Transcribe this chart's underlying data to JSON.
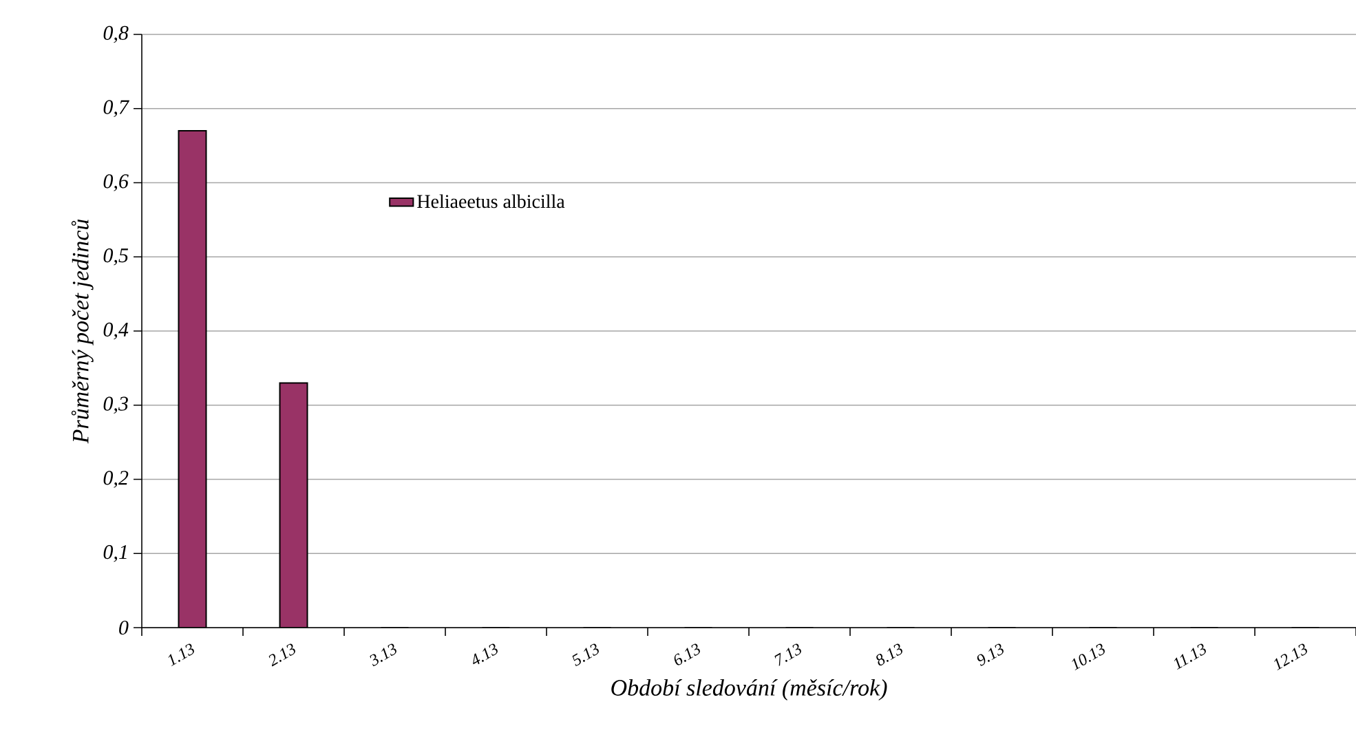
{
  "chart_data": {
    "type": "bar",
    "xlabel": "Období sledování (měsíc/rok)",
    "ylabel": "Průměrný počet jedinců",
    "categories": [
      "1.13",
      "2.13",
      "3.13",
      "4.13",
      "5.13",
      "6.13",
      "7.13",
      "8.13",
      "9.13",
      "10.13",
      "11.13",
      "12.13"
    ],
    "series": [
      {
        "name": "Heliaeetus albicilla",
        "color": "#993366",
        "values": [
          0.67,
          0.33,
          0,
          0,
          0,
          0,
          0,
          0,
          0,
          0,
          0,
          0
        ]
      }
    ],
    "ylim": [
      0,
      0.8
    ],
    "yticks": [
      0,
      {
        "value": 0.1,
        "label": "0,1"
      },
      {
        "value": 0.2,
        "label": "0,2"
      },
      {
        "value": 0.3,
        "label": "0,3"
      },
      {
        "value": 0.4,
        "label": "0,4"
      },
      {
        "value": 0.5,
        "label": "0,5"
      },
      {
        "value": 0.6,
        "label": "0,6"
      },
      {
        "value": 0.7,
        "label": "0,7"
      },
      {
        "value": 0.8,
        "label": "0,8"
      }
    ],
    "grid": "y",
    "legend": "top left"
  }
}
